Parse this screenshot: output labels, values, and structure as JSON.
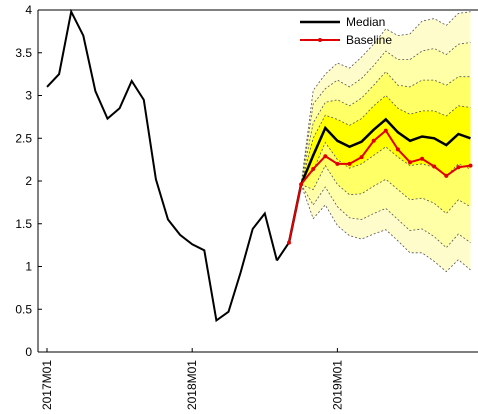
{
  "chart_data": {
    "type": "line",
    "title": "",
    "xlabel": "",
    "ylabel": "",
    "ylim": [
      0,
      4
    ],
    "yticks": [
      "0",
      "0.5",
      "1",
      "1.5",
      "2",
      "2.5",
      "3",
      "3.5",
      "4"
    ],
    "xticks": [
      "2017M01",
      "2018M01",
      "2019M01"
    ],
    "grid": false,
    "legend": {
      "placement": "top-right",
      "entries": [
        "Median",
        "Baseline"
      ]
    },
    "colors": {
      "history": "#000000",
      "median": "#000000",
      "baseline": "#e00000",
      "fan_inner": "#ffff00",
      "fan_mid": "#ffff66",
      "fan_outer": "#ffffa8",
      "fan_edge": "#fffccc",
      "band_line": "#555555"
    },
    "history": {
      "name": "",
      "x": [
        "2017M01",
        "2017M02",
        "2017M03",
        "2017M04",
        "2017M05",
        "2017M06",
        "2017M07",
        "2017M08",
        "2017M09",
        "2017M10",
        "2017M11",
        "2017M12",
        "2018M01",
        "2018M02",
        "2018M03",
        "2018M04",
        "2018M05",
        "2018M06",
        "2018M07",
        "2018M08",
        "2018M09"
      ],
      "values": [
        3.1,
        3.25,
        3.98,
        3.7,
        3.05,
        2.73,
        2.85,
        3.17,
        2.95,
        2.02,
        1.55,
        1.37,
        1.26,
        1.19,
        0.37,
        0.47,
        0.93,
        1.44,
        1.62,
        1.07,
        1.28
      ]
    },
    "forecast_x": [
      "2018M09",
      "2018M10",
      "2018M11",
      "2018M12",
      "2019M01",
      "2019M02",
      "2019M03",
      "2019M04",
      "2019M05",
      "2019M06",
      "2019M07",
      "2019M08",
      "2019M09",
      "2019M10",
      "2019M11",
      "2019M12"
    ],
    "median": {
      "name": "Median",
      "values": [
        1.28,
        1.96,
        2.3,
        2.62,
        2.47,
        2.4,
        2.46,
        2.6,
        2.72,
        2.57,
        2.47,
        2.52,
        2.5,
        2.42,
        2.55,
        2.5
      ]
    },
    "baseline": {
      "name": "Baseline",
      "values": [
        1.28,
        1.96,
        2.14,
        2.29,
        2.2,
        2.2,
        2.28,
        2.47,
        2.59,
        2.37,
        2.22,
        2.26,
        2.17,
        2.06,
        2.16,
        2.18
      ]
    },
    "fan_bands": {
      "x": [
        "2018M10",
        "2018M11",
        "2018M12",
        "2019M01",
        "2019M02",
        "2019M03",
        "2019M04",
        "2019M05",
        "2019M06",
        "2019M07",
        "2019M08",
        "2019M09",
        "2019M10",
        "2019M11",
        "2019M12"
      ],
      "upper": [
        [
          1.96,
          3.06,
          3.25,
          3.38,
          3.32,
          3.45,
          3.6,
          3.78,
          3.7,
          3.72,
          3.87,
          3.9,
          3.82,
          3.96,
          3.98
        ],
        [
          1.96,
          2.9,
          3.08,
          3.18,
          3.1,
          3.2,
          3.35,
          3.52,
          3.42,
          3.42,
          3.52,
          3.55,
          3.48,
          3.6,
          3.62
        ],
        [
          1.96,
          2.68,
          2.92,
          2.95,
          2.88,
          2.97,
          3.12,
          3.28,
          3.12,
          3.1,
          3.18,
          3.18,
          3.12,
          3.22,
          3.22
        ],
        [
          1.96,
          2.5,
          2.77,
          2.72,
          2.65,
          2.73,
          2.88,
          3.0,
          2.85,
          2.78,
          2.82,
          2.82,
          2.76,
          2.88,
          2.86
        ]
      ],
      "lower": [
        [
          1.96,
          2.12,
          2.45,
          2.25,
          2.15,
          2.2,
          2.3,
          2.4,
          2.28,
          2.18,
          2.2,
          2.16,
          2.06,
          2.2,
          2.14
        ],
        [
          1.96,
          1.9,
          2.18,
          1.96,
          1.84,
          1.85,
          1.94,
          2.02,
          1.9,
          1.78,
          1.8,
          1.74,
          1.62,
          1.78,
          1.7
        ],
        [
          1.96,
          1.72,
          1.93,
          1.7,
          1.57,
          1.55,
          1.62,
          1.68,
          1.55,
          1.42,
          1.44,
          1.35,
          1.22,
          1.38,
          1.28
        ],
        [
          1.96,
          1.56,
          1.72,
          1.48,
          1.36,
          1.32,
          1.38,
          1.43,
          1.3,
          1.16,
          1.16,
          1.06,
          0.94,
          1.08,
          0.96
        ]
      ]
    }
  }
}
